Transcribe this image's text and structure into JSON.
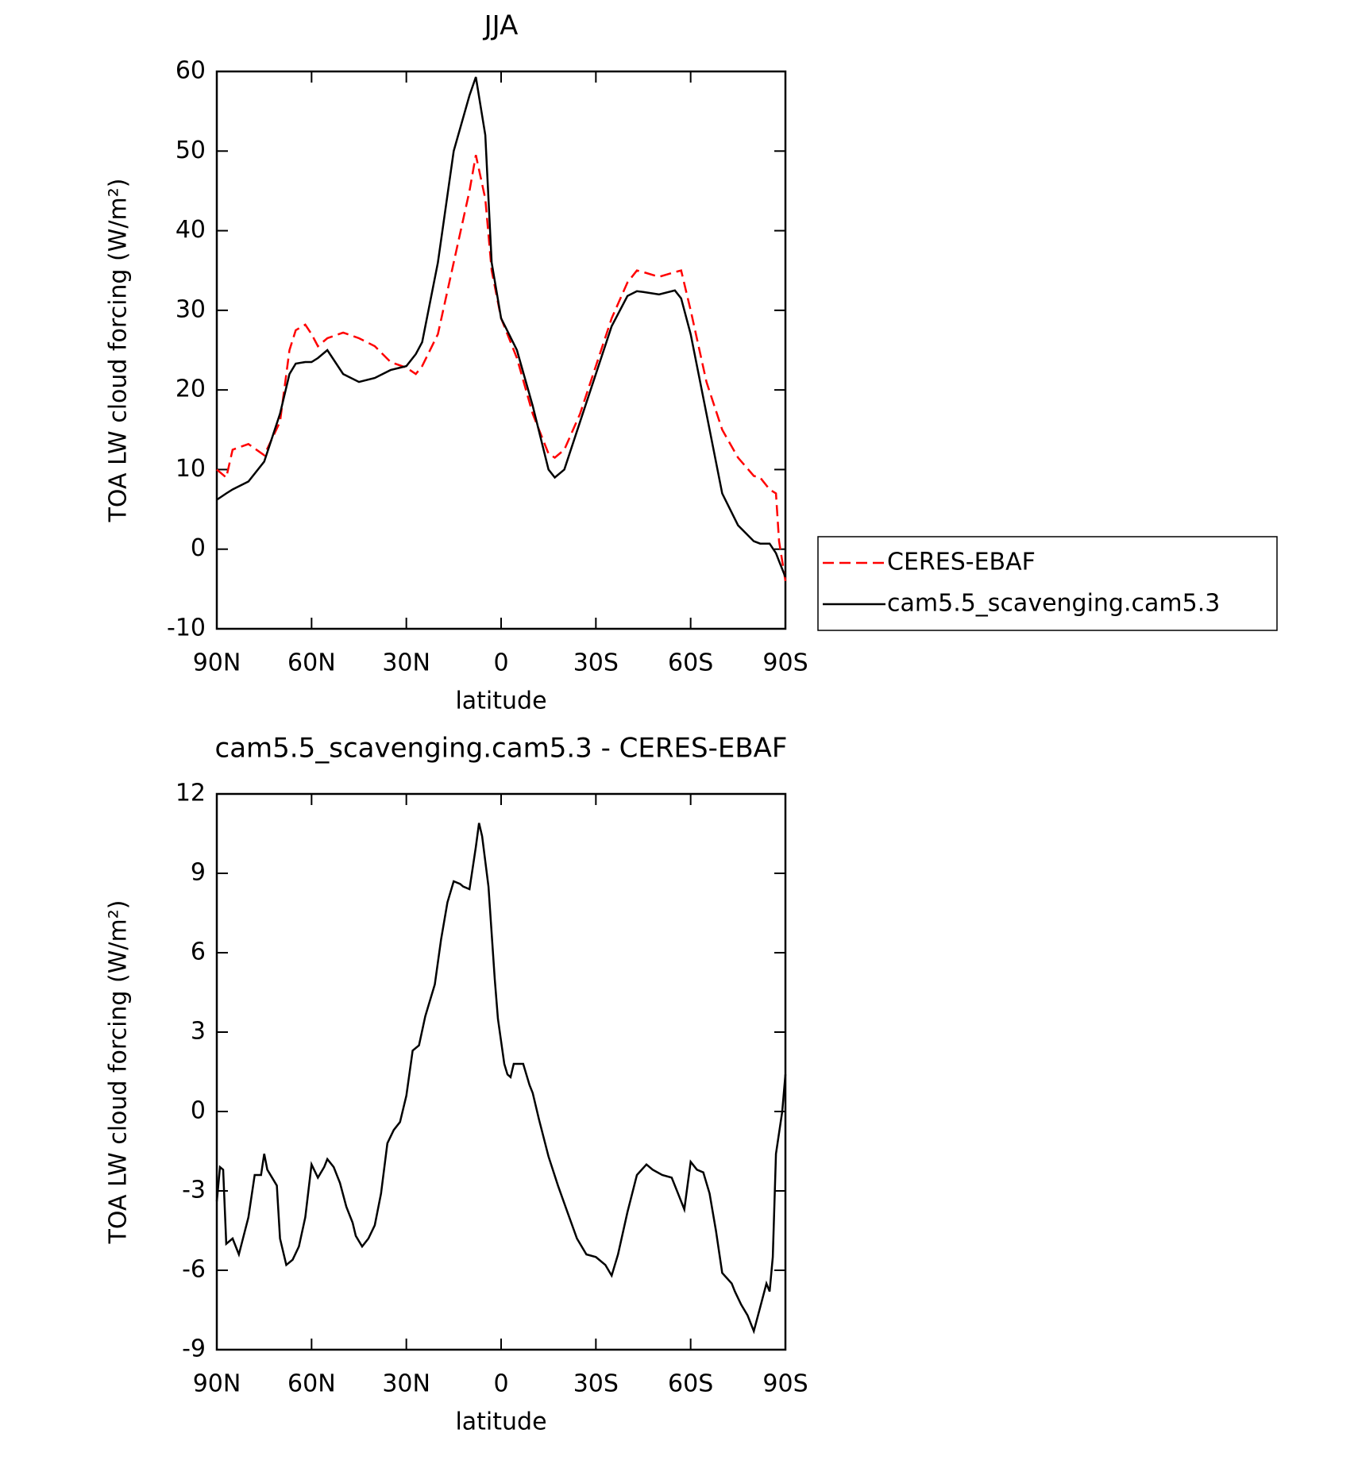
{
  "chart_data": [
    {
      "type": "line",
      "title": "JJA",
      "xlabel": "latitude",
      "ylabel": "TOA LW cloud forcing (W/m²)",
      "x": [
        90,
        87,
        85,
        80,
        75,
        70,
        67,
        65,
        62,
        60,
        58,
        55,
        50,
        45,
        40,
        35,
        30,
        27,
        25,
        20,
        15,
        10,
        8,
        5,
        3,
        0,
        -5,
        -10,
        -15,
        -17,
        -20,
        -25,
        -30,
        -35,
        -40,
        -43,
        -45,
        -50,
        -55,
        -57,
        -60,
        -65,
        -70,
        -75,
        -80,
        -82,
        -85,
        -87,
        -88,
        -90
      ],
      "series": [
        {
          "name": "CERES-EBAF",
          "color": "#ff0000",
          "style": "dashed",
          "values": [
            10,
            9,
            12.5,
            13.2,
            11.8,
            16,
            25,
            27.5,
            28.2,
            27,
            25.5,
            26.5,
            27.2,
            26.5,
            25.5,
            23.5,
            22.8,
            22,
            23,
            27,
            36,
            45,
            49.5,
            44,
            35,
            29,
            24,
            17,
            12,
            11.5,
            12.5,
            17,
            23,
            29,
            33.5,
            35,
            34.8,
            34.2,
            34.8,
            35,
            30,
            21,
            15,
            11.5,
            9.2,
            9,
            7.5,
            7,
            1,
            -4
          ]
        },
        {
          "name": "cam5.5_scavenging.cam5.3",
          "color": "#000000",
          "style": "solid",
          "values": [
            6.2,
            7,
            7.5,
            8.5,
            11,
            17,
            22,
            23.3,
            23.5,
            23.5,
            24,
            25,
            22,
            21,
            21.5,
            22.5,
            23,
            24.5,
            26,
            36,
            50,
            57,
            59.3,
            52,
            36,
            29,
            25,
            18,
            10,
            9,
            10,
            16,
            22,
            28,
            31.8,
            32.4,
            32.3,
            32,
            32.5,
            31.5,
            27,
            17,
            7,
            3,
            1,
            0.7,
            0.7,
            -0.5,
            -1.5,
            -3.5
          ]
        }
      ],
      "xlim": [
        90,
        -90
      ],
      "ylim": [
        -10,
        60
      ],
      "xticks": [
        {
          "value": 90,
          "label": "90N"
        },
        {
          "value": 60,
          "label": "60N"
        },
        {
          "value": 30,
          "label": "30N"
        },
        0,
        {
          "value": -30,
          "label": "30S"
        },
        {
          "value": -60,
          "label": "60S"
        },
        {
          "value": -90,
          "label": "90S"
        }
      ],
      "yticks": [
        -10,
        0,
        10,
        20,
        30,
        40,
        50,
        60
      ],
      "legend": "outside-right"
    },
    {
      "type": "line",
      "title": "cam5.5_scavenging.cam5.3 - CERES-EBAF",
      "xlabel": "latitude",
      "ylabel": "TOA LW cloud forcing (W/m²)",
      "x": [
        90,
        89,
        88,
        87,
        85,
        83,
        80,
        78,
        76,
        75,
        74,
        71,
        70,
        68,
        66,
        64,
        62,
        60,
        58,
        56,
        55,
        53,
        51,
        49,
        47,
        46,
        44,
        42,
        40,
        38,
        36,
        34,
        32,
        30,
        28,
        26,
        24,
        21,
        19,
        17,
        15,
        13,
        12,
        10,
        8,
        7,
        6,
        4,
        2,
        1,
        -1,
        -2,
        -3,
        -4,
        -7,
        -9,
        -10,
        -12,
        -15,
        -18,
        -21,
        -24,
        -27,
        -30,
        -33,
        -35,
        -37,
        -40,
        -43,
        -46,
        -48,
        -51,
        -54,
        -56,
        -58,
        -60,
        -62,
        -64,
        -66,
        -68,
        -70,
        -73,
        -74,
        -76,
        -78,
        -80,
        -82,
        -84,
        -85,
        -86,
        -87,
        -89,
        -90
      ],
      "series": [
        {
          "color": "#000000",
          "style": "solid",
          "values": [
            -3.4,
            -2.1,
            -2.2,
            -5,
            -4.8,
            -5.4,
            -4,
            -2.4,
            -2.4,
            -1.6,
            -2.2,
            -2.8,
            -4.8,
            -5.8,
            -5.6,
            -5.1,
            -4,
            -2,
            -2.5,
            -2.1,
            -1.8,
            -2.1,
            -2.7,
            -3.6,
            -4.2,
            -4.7,
            -5.1,
            -4.8,
            -4.3,
            -3.1,
            -1.2,
            -0.7,
            -0.4,
            0.6,
            2.3,
            2.5,
            3.6,
            4.8,
            6.5,
            7.9,
            8.7,
            8.6,
            8.5,
            8.4,
            10,
            10.9,
            10.4,
            8.5,
            5,
            3.5,
            1.8,
            1.4,
            1.3,
            1.8,
            1.8,
            1,
            0.7,
            -0.3,
            -1.7,
            -2.8,
            -3.8,
            -4.8,
            -5.4,
            -5.5,
            -5.8,
            -6.2,
            -5.4,
            -3.8,
            -2.4,
            -2,
            -2.2,
            -2.4,
            -2.5,
            -3.1,
            -3.7,
            -1.9,
            -2.2,
            -2.3,
            -3.1,
            -4.5,
            -6.1,
            -6.5,
            -6.8,
            -7.3,
            -7.7,
            -8.3,
            -7.4,
            -6.5,
            -6.8,
            -5.5,
            -1.6,
            0,
            1.4
          ]
        }
      ],
      "xlim": [
        90,
        -90
      ],
      "ylim": [
        -9,
        12
      ],
      "xticks": [
        {
          "value": 90,
          "label": "90N"
        },
        {
          "value": 60,
          "label": "60N"
        },
        {
          "value": 30,
          "label": "30N"
        },
        0,
        {
          "value": -30,
          "label": "30S"
        },
        {
          "value": -60,
          "label": "60S"
        },
        {
          "value": -90,
          "label": "90S"
        }
      ],
      "yticks": [
        -9,
        -6,
        -3,
        0,
        3,
        6,
        9,
        12
      ]
    }
  ]
}
